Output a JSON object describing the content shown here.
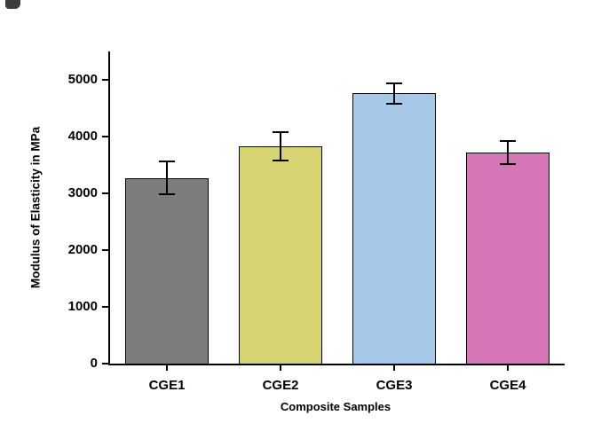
{
  "background": "#ffffff",
  "axis_color": "#000000",
  "chart_data": {
    "type": "bar",
    "title": "",
    "categories": [
      "CGE1",
      "CGE2",
      "CGE3",
      "CGE4"
    ],
    "values": [
      3270,
      3830,
      4760,
      3720
    ],
    "errors": [
      290,
      250,
      180,
      200
    ],
    "bar_colors": [
      "#7d7d7d",
      "#d6d372",
      "#a6c9e9",
      "#d577b6"
    ],
    "bar_edge_color": "#000000",
    "xlabel": "Composite Samples",
    "ylabel": "Modulus of Elasticity in MPa",
    "ylim": [
      0,
      5500
    ],
    "yticks": [
      0,
      1000,
      2000,
      3000,
      4000,
      5000
    ],
    "grid": false,
    "legend": "none"
  }
}
